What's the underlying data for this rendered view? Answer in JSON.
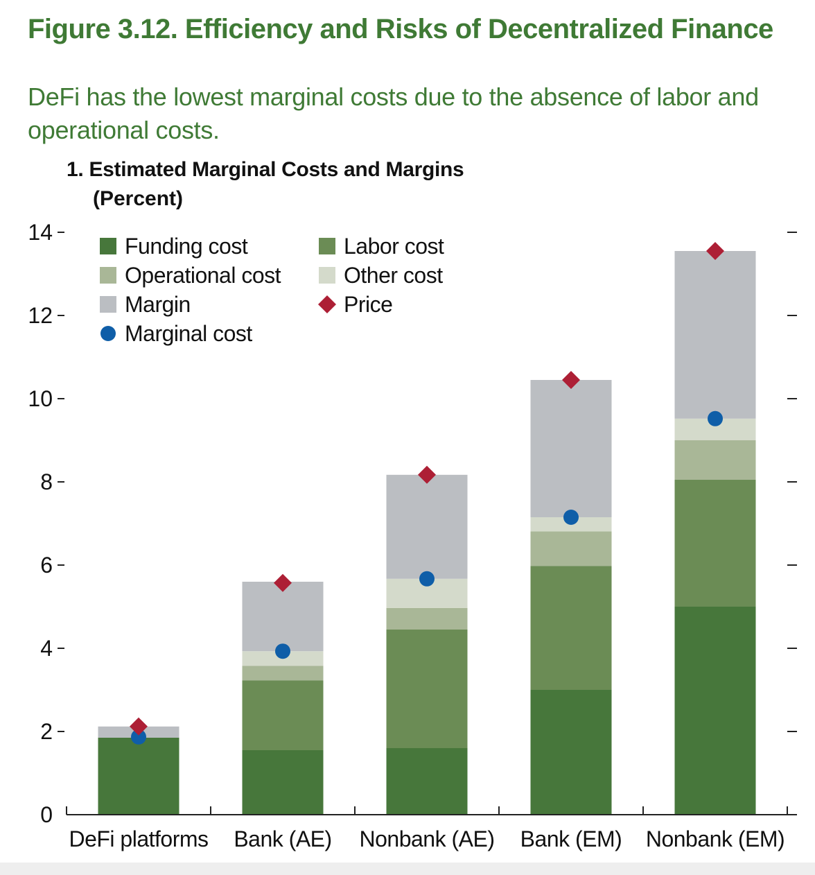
{
  "figure_title": "Figure 3.12. Efficiency and Risks of Decentralized Finance",
  "subtitle": "DeFi has the lowest marginal costs due to the absence of labor and operational costs.",
  "chart_data": {
    "type": "bar",
    "stacked": true,
    "title": "1. Estimated Marginal Costs and Margins",
    "ylabel": "(Percent)",
    "xlabel": "",
    "ylim": [
      0,
      14
    ],
    "yticks": [
      0,
      2,
      4,
      6,
      8,
      10,
      12,
      14
    ],
    "grid": false,
    "legend_position": "top-left",
    "categories": [
      "DeFi platforms",
      "Bank (AE)",
      "Nonbank (AE)",
      "Bank (EM)",
      "Nonbank (EM)"
    ],
    "series": [
      {
        "name": "Funding cost",
        "kind": "bar",
        "color": "#47773b",
        "values": [
          1.85,
          1.55,
          1.6,
          3.0,
          5.0
        ]
      },
      {
        "name": "Labor cost",
        "kind": "bar",
        "color": "#6b8c55",
        "values": [
          0.0,
          1.68,
          2.85,
          2.98,
          3.05
        ]
      },
      {
        "name": "Operational cost",
        "kind": "bar",
        "color": "#a9b797",
        "values": [
          0.0,
          0.35,
          0.52,
          0.83,
          0.95
        ]
      },
      {
        "name": "Other cost",
        "kind": "bar",
        "color": "#d4dacb",
        "values": [
          0.0,
          0.35,
          0.7,
          0.34,
          0.52
        ]
      },
      {
        "name": "Margin",
        "kind": "bar",
        "color": "#bbbec2",
        "values": [
          0.27,
          1.67,
          2.5,
          3.3,
          4.03
        ]
      },
      {
        "name": "Marginal cost",
        "kind": "marker",
        "marker": "circle",
        "color": "#0f5ea8",
        "values": [
          1.87,
          3.93,
          5.67,
          7.15,
          9.52
        ]
      },
      {
        "name": "Price",
        "kind": "marker",
        "marker": "diamond",
        "color": "#ad1f35",
        "values": [
          2.12,
          5.57,
          8.17,
          10.45,
          13.55
        ]
      }
    ],
    "legend": [
      {
        "name": "Funding cost",
        "swatch": "square",
        "color": "#47773b"
      },
      {
        "name": "Labor cost",
        "swatch": "square",
        "color": "#6b8c55"
      },
      {
        "name": "Operational cost",
        "swatch": "square",
        "color": "#a9b797"
      },
      {
        "name": "Other cost",
        "swatch": "square",
        "color": "#d4dacb"
      },
      {
        "name": "Margin",
        "swatch": "square",
        "color": "#bbbec2"
      },
      {
        "name": "Price",
        "swatch": "diamond",
        "color": "#ad1f35"
      },
      {
        "name": "Marginal cost",
        "swatch": "circle",
        "color": "#0f5ea8"
      }
    ]
  }
}
